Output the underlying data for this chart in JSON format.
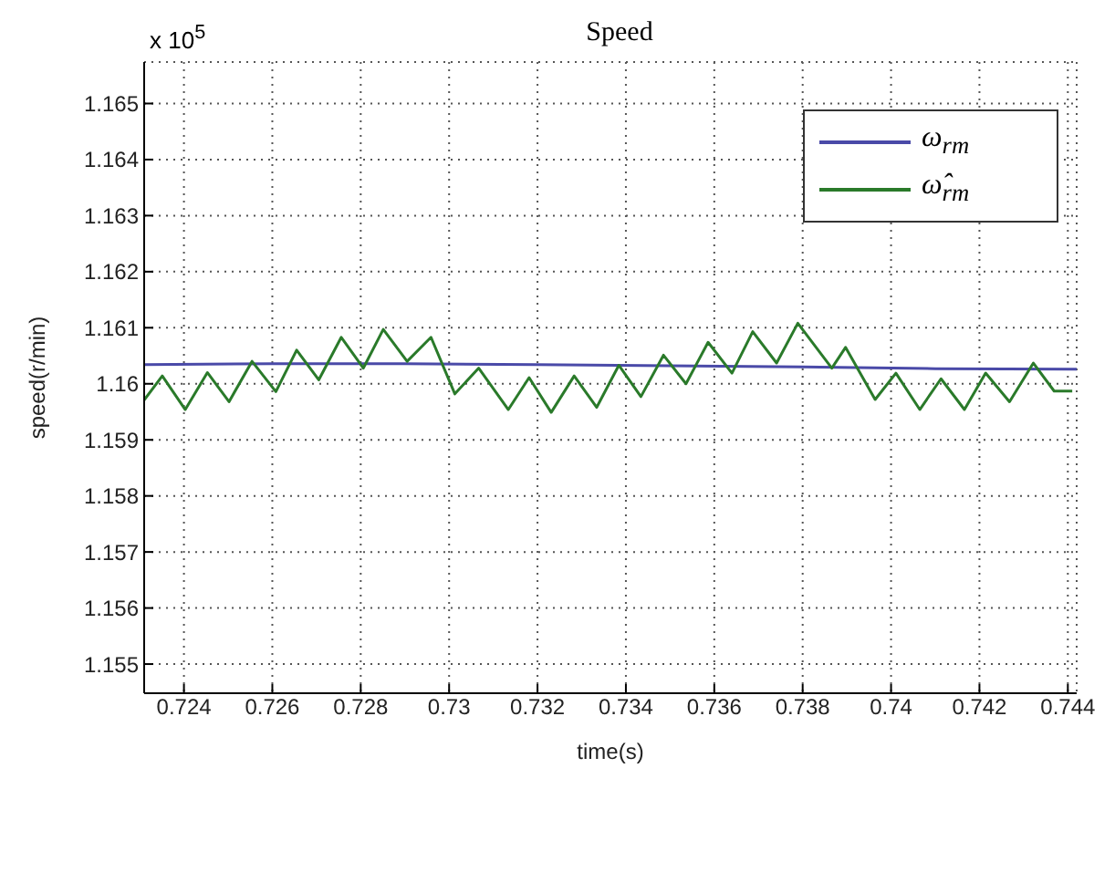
{
  "chart_data": {
    "type": "line",
    "title": "Speed",
    "xlabel": "time(s)",
    "ylabel": "speed(r/min)",
    "annotations": [
      "x 10$^{5}$"
    ],
    "series": [
      {
        "name": "ω$_{rm}$",
        "color": "#4a4aa8",
        "x": [
          0.7231,
          0.726,
          0.729,
          0.732,
          0.735,
          0.738,
          0.741,
          0.7442
        ],
        "values": [
          1.16034,
          1.16036,
          1.16036,
          1.16034,
          1.16032,
          1.1603,
          1.16027,
          1.16026
        ]
      },
      {
        "name": "ω̂$_{rm}$",
        "color": "#2a7a2a",
        "x": [
          0.7231,
          0.72351,
          0.72403,
          0.72453,
          0.72502,
          0.72554,
          0.72608,
          0.72655,
          0.72705,
          0.72756,
          0.72806,
          0.72851,
          0.72905,
          0.72959,
          0.73013,
          0.73067,
          0.73134,
          0.73181,
          0.73231,
          0.73283,
          0.73334,
          0.73384,
          0.73434,
          0.73485,
          0.73536,
          0.73586,
          0.7364,
          0.73687,
          0.73741,
          0.73789,
          0.73866,
          0.73897,
          0.73964,
          0.74011,
          0.74065,
          0.74113,
          0.74166,
          0.74214,
          0.74268,
          0.74322,
          0.74369,
          0.7441
        ],
        "values": [
          1.15971,
          1.16014,
          1.15954,
          1.1602,
          1.15968,
          1.1604,
          1.15986,
          1.1606,
          1.16007,
          1.16083,
          1.16028,
          1.16097,
          1.1604,
          1.16083,
          1.15982,
          1.16028,
          1.15954,
          1.16011,
          1.15949,
          1.16014,
          1.15958,
          1.16033,
          1.15977,
          1.16051,
          1.16,
          1.16074,
          1.16019,
          1.16093,
          1.16037,
          1.16108,
          1.16028,
          1.16065,
          1.15972,
          1.16019,
          1.15954,
          1.16009,
          1.15954,
          1.16019,
          1.15968,
          1.16037,
          1.15987,
          1.15987
        ]
      }
    ],
    "xlim": [
      0.7231,
      0.7442
    ],
    "xticks": [
      0.724,
      0.726,
      0.728,
      0.73,
      0.732,
      0.734,
      0.736,
      0.738,
      0.74,
      0.742,
      0.744
    ],
    "ylim": [
      1.15448,
      1.16574
    ],
    "yticks": [
      1.155,
      1.156,
      1.157,
      1.158,
      1.159,
      1.16,
      1.161,
      1.162,
      1.163,
      1.164,
      1.165
    ],
    "grid": true,
    "legend": "top right",
    "line_style": "solid",
    "marker": "none"
  }
}
